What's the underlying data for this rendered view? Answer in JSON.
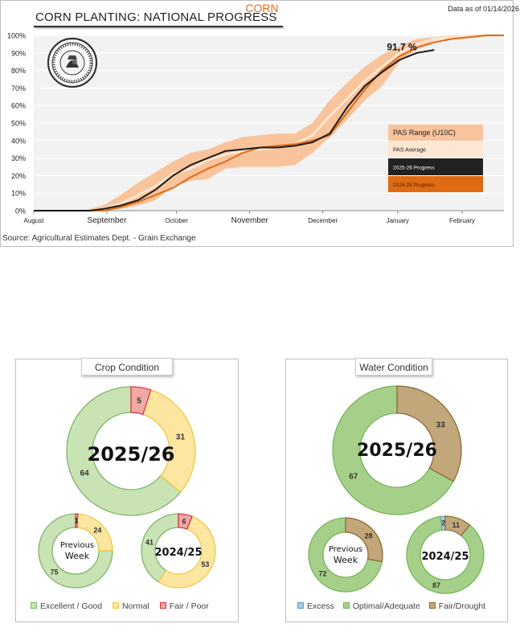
{
  "page": {
    "title": "CORN"
  },
  "colors": {
    "accent": "#e07020",
    "band": "#f9c39b",
    "average": "#fde6d2",
    "current": "#1a1a1a",
    "previous": "#e06a12",
    "excellent_fill": "#c9e3b5",
    "excellent_stroke": "#7fb66a",
    "normal_fill": "#fde6a0",
    "normal_stroke": "#f0c642",
    "poor_fill": "#f1a9a6",
    "poor_stroke": "#d9363e",
    "excess_fill": "#a9cbe8",
    "excess_stroke": "#5b9bd5",
    "optimal_fill": "#a6d08a",
    "optimal_stroke": "#77b35a",
    "drought_fill": "#c2a77a",
    "drought_stroke": "#8c6a38"
  },
  "progress": {
    "title": "CORN PLANTING: NATIONAL PROGRESS",
    "date_note": "Data as of 01/14/2026",
    "source": "Source: Agricultural Estimates Dept. - Grain Exchange",
    "seal_icon": "grain-exchange-seal-icon"
  },
  "chart_data": [
    {
      "type": "line",
      "title": "CORN PLANTING: NATIONAL PROGRESS",
      "ylabel": "",
      "xlabel": "",
      "ylim": [
        0,
        100
      ],
      "xlim": [
        0,
        27
      ],
      "x_unit": "weeks since start of August",
      "y_ticks": [
        "0%",
        "10%",
        "20%",
        "30%",
        "40%",
        "50%",
        "60%",
        "70%",
        "80%",
        "90%",
        "100%"
      ],
      "x_ticks": [
        {
          "label": "August",
          "x": 0
        },
        {
          "label": "September",
          "x": 4.2
        },
        {
          "label": "October",
          "x": 8.2
        },
        {
          "label": "November",
          "x": 12.4
        },
        {
          "label": "December",
          "x": 16.6
        },
        {
          "label": "January",
          "x": 20.9
        },
        {
          "label": "February",
          "x": 24.6
        }
      ],
      "annotation": {
        "text": "91,7 %",
        "x": 19.4,
        "y": 91.7
      },
      "legend": {
        "placement": "center-right",
        "entries": [
          "PAS Range (U10C)",
          "PAS Average",
          "2025-26 Progress",
          "2024-25 Progress"
        ]
      },
      "series": [
        {
          "name": "PAS Range (U10C) upper",
          "x": [
            0,
            2.5,
            3.2,
            4,
            5,
            6,
            7,
            8,
            9,
            10,
            11,
            12,
            13,
            14,
            15,
            16,
            17,
            18,
            19,
            20,
            21,
            22,
            23,
            24,
            25,
            26,
            27
          ],
          "values": [
            0,
            0,
            1,
            3,
            9,
            16,
            22,
            28,
            33,
            35,
            39,
            42,
            43,
            44,
            44,
            50,
            63,
            73,
            82,
            89,
            94,
            98,
            99,
            100,
            100,
            100,
            100
          ]
        },
        {
          "name": "PAS Range (U10C) lower",
          "x": [
            0,
            2.5,
            3.2,
            4,
            5,
            6,
            7,
            8,
            9,
            10,
            11,
            12,
            13,
            14,
            15,
            16,
            17,
            18,
            19,
            20,
            21,
            22,
            23,
            24,
            25,
            26,
            27
          ],
          "values": [
            0,
            0,
            0,
            0,
            1,
            3,
            6,
            14,
            17,
            18,
            24,
            25,
            25,
            25,
            26,
            33,
            42,
            52,
            63,
            71,
            85,
            92,
            97,
            99,
            100,
            100,
            100
          ]
        },
        {
          "name": "PAS Average",
          "x": [
            0,
            2.5,
            3.2,
            4,
            5,
            6,
            7,
            8,
            9,
            10,
            11,
            12,
            13,
            14,
            15,
            16,
            17,
            18,
            19,
            20,
            21,
            22,
            23,
            24,
            25,
            26,
            27
          ],
          "values": [
            0,
            0,
            0,
            1,
            4,
            9,
            14,
            21,
            24,
            29,
            32,
            34,
            35,
            36,
            38,
            43,
            54,
            64,
            74,
            82,
            90,
            95,
            98,
            99,
            100,
            100,
            100
          ]
        },
        {
          "name": "2025-26 Progress",
          "x": [
            0,
            2.5,
            3.2,
            4,
            5,
            6,
            7,
            8,
            9,
            10,
            11,
            12,
            13,
            14,
            15,
            16,
            17,
            18,
            19,
            20,
            21,
            22,
            23,
            24,
            25,
            26,
            27
          ],
          "values": [
            0,
            0,
            0,
            1,
            3,
            6,
            12,
            20,
            26,
            30,
            34,
            35,
            36,
            36,
            37,
            39,
            44,
            59,
            71,
            79,
            86,
            90,
            91.7,
            null,
            null,
            null,
            null
          ]
        },
        {
          "name": "2024-25 Progress",
          "x": [
            0,
            2.5,
            3.2,
            4,
            5,
            6,
            7,
            8,
            9,
            10,
            11,
            12,
            13,
            14,
            15,
            16,
            17,
            18,
            19,
            20,
            21,
            22,
            23,
            24,
            25,
            26,
            27
          ],
          "values": [
            0,
            0,
            0,
            0,
            2,
            5,
            9,
            13,
            19,
            24,
            28,
            33,
            36,
            37,
            38,
            40,
            43,
            56,
            69,
            80,
            88,
            93,
            96,
            98,
            99,
            100,
            100
          ]
        }
      ]
    },
    {
      "type": "pie",
      "title": "Crop Condition",
      "legend": {
        "placement": "bottom",
        "entries": [
          "Excellent / Good",
          "Normal",
          "Fair / Poor"
        ]
      },
      "charts": [
        {
          "name": "2025/26",
          "center_label": "2025/26",
          "values": [
            64,
            31,
            5
          ]
        },
        {
          "name": "Previous Week",
          "center_label": "Previous Week",
          "values": [
            75,
            24,
            1
          ]
        },
        {
          "name": "2024/25",
          "center_label": "2024/25",
          "values": [
            41,
            53,
            6
          ]
        }
      ]
    },
    {
      "type": "pie",
      "title": "Water Condition",
      "legend": {
        "placement": "bottom",
        "entries": [
          "Excess",
          "Optimal/Adequate",
          "Fair/Drought"
        ]
      },
      "charts": [
        {
          "name": "2025/26",
          "center_label": "2025/26",
          "values": [
            0,
            67,
            33
          ]
        },
        {
          "name": "Previous Week",
          "center_label": "Previous Week",
          "values": [
            0,
            72,
            28
          ]
        },
        {
          "name": "2024/25",
          "center_label": "2024/25",
          "values": [
            2,
            87,
            11
          ]
        }
      ]
    }
  ],
  "crop": {
    "title": "Crop Condition",
    "legend": [
      "Excellent / Good",
      "Normal",
      "Fair / Poor"
    ],
    "main": {
      "label": "2025/26",
      "values": [
        64,
        31,
        5
      ],
      "value_labels": [
        "64",
        "31",
        "5"
      ]
    },
    "prev": {
      "label_line1": "Previous",
      "label_line2": "Week",
      "values": [
        75,
        24,
        1
      ],
      "value_labels": [
        "75",
        "24",
        "1"
      ]
    },
    "last": {
      "label": "2024/25",
      "values": [
        41,
        53,
        6
      ],
      "value_labels": [
        "41",
        "53",
        "6"
      ]
    }
  },
  "water": {
    "title": "Water Condition",
    "legend": [
      "Excess",
      "Optimal/Adequate",
      "Fair/Drought"
    ],
    "main": {
      "label": "2025/26",
      "values": [
        0,
        67,
        33
      ],
      "value_labels": [
        "",
        "67",
        "33"
      ]
    },
    "prev": {
      "label_line1": "Previous",
      "label_line2": "Week",
      "values": [
        0,
        72,
        28
      ],
      "value_labels": [
        "",
        "72",
        "28"
      ]
    },
    "last": {
      "label": "2024/25",
      "values": [
        2,
        87,
        11
      ],
      "value_labels": [
        "2",
        "87",
        "11"
      ]
    }
  }
}
